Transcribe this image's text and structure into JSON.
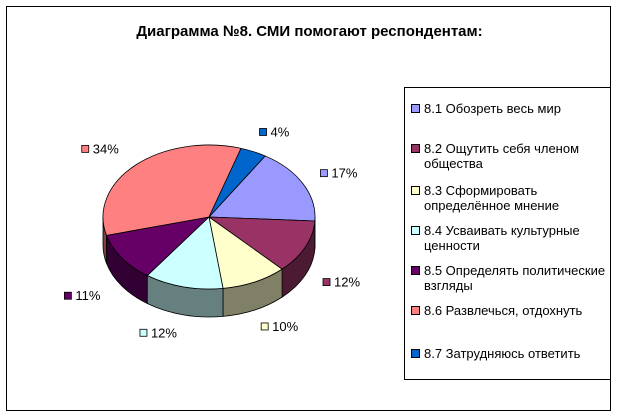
{
  "chart_data": {
    "type": "pie",
    "title": "Диаграмма №8. СМИ помогают респондентам:",
    "legend_position": "right",
    "slices": [
      {
        "id": "8.1",
        "label": "8.1 Обозреть весь мир",
        "value": 17,
        "value_label": "17%",
        "color": "#9999FF"
      },
      {
        "id": "8.2",
        "label": "8.2 Ощутить себя членом общества",
        "value": 12,
        "value_label": "12%",
        "color": "#993366"
      },
      {
        "id": "8.3",
        "label": "8.3 Сформировать определённое мнение",
        "value": 10,
        "value_label": "10%",
        "color": "#FFFFCC"
      },
      {
        "id": "8.4",
        "label": "8.4 Усваивать культурные ценности",
        "value": 12,
        "value_label": "12%",
        "color": "#CCFFFF"
      },
      {
        "id": "8.5",
        "label": "8.5 Определять политические взгляды",
        "value": 11,
        "value_label": "11%",
        "color": "#660066"
      },
      {
        "id": "8.6",
        "label": "8.6 Развлечься, отдохнуть",
        "value": 34,
        "value_label": "34%",
        "color": "#FF8080"
      },
      {
        "id": "8.7",
        "label": "8.7 Затрудняюсь ответить",
        "value": 4,
        "value_label": "4%",
        "color": "#0066CC"
      }
    ]
  }
}
